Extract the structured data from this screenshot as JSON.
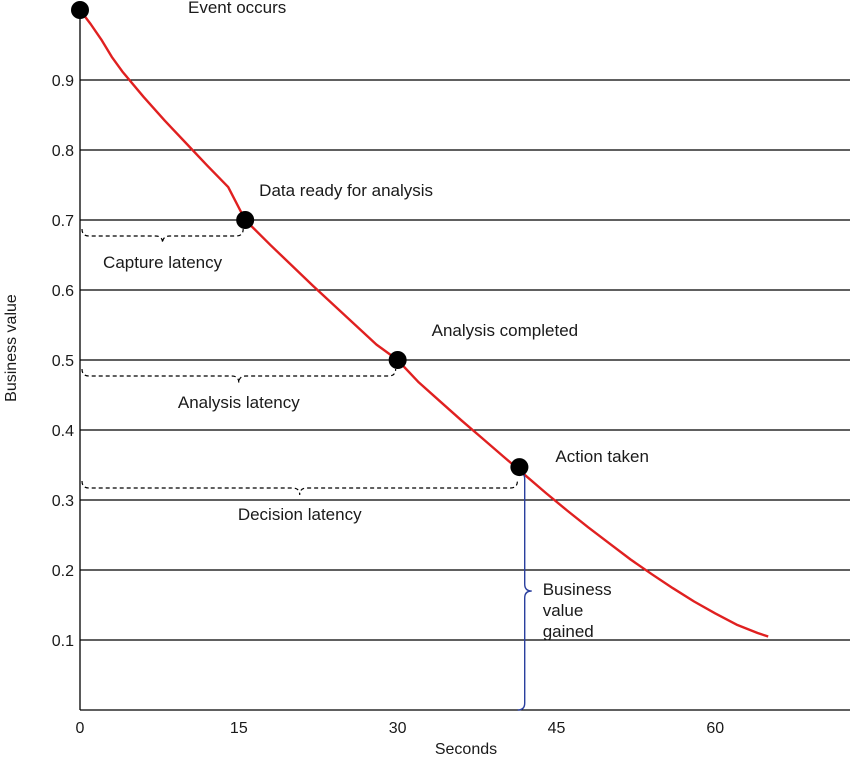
{
  "chart_data": {
    "type": "line",
    "xlabel": "Seconds",
    "ylabel": "Business value",
    "xlim": [
      0,
      68
    ],
    "ylim": [
      0,
      1.0
    ],
    "x_ticks": [
      0,
      15,
      30,
      45,
      60
    ],
    "y_ticks": [
      0.1,
      0.2,
      0.3,
      0.4,
      0.5,
      0.6,
      0.7,
      0.8,
      0.9
    ],
    "grid": "horizontal",
    "series": [
      {
        "color": "#e02020",
        "x": [
          0,
          1,
          2,
          3,
          4,
          6,
          8,
          10,
          12,
          14,
          15.6,
          18,
          20,
          22,
          24,
          26,
          28,
          30,
          32,
          34,
          36,
          38,
          40,
          42,
          44,
          46,
          48,
          50,
          52,
          54,
          56,
          58,
          60,
          62,
          64,
          65
        ],
        "y": [
          1.0,
          0.98,
          0.958,
          0.933,
          0.912,
          0.876,
          0.842,
          0.81,
          0.778,
          0.747,
          0.7,
          0.664,
          0.635,
          0.606,
          0.578,
          0.55,
          0.522,
          0.5,
          0.468,
          0.441,
          0.414,
          0.388,
          0.362,
          0.336,
          0.31,
          0.285,
          0.261,
          0.238,
          0.215,
          0.194,
          0.174,
          0.155,
          0.138,
          0.122,
          0.11,
          0.105
        ]
      }
    ],
    "events": [
      {
        "label": "Event occurs",
        "x": 0,
        "y": 1.0
      },
      {
        "label": "Data ready for analysis",
        "x": 15.6,
        "y": 0.7
      },
      {
        "label": "Analysis completed",
        "x": 30,
        "y": 0.5
      },
      {
        "label": "Action taken",
        "x": 41.5,
        "y": 0.347
      }
    ],
    "latencies": [
      {
        "label": "Capture latency",
        "x_from": 0,
        "x_to": 15.6,
        "y": 0.67
      },
      {
        "label": "Analysis latency",
        "x_from": 0,
        "x_to": 30,
        "y": 0.47
      },
      {
        "label": "Decision latency",
        "x_from": 0,
        "x_to": 41.5,
        "y": 0.31
      }
    ],
    "value_gained": {
      "label_lines": [
        "Business",
        "value",
        "gained"
      ],
      "x": 42,
      "y_from": 0,
      "y_to": 0.34,
      "color": "#2a3f9e"
    }
  }
}
